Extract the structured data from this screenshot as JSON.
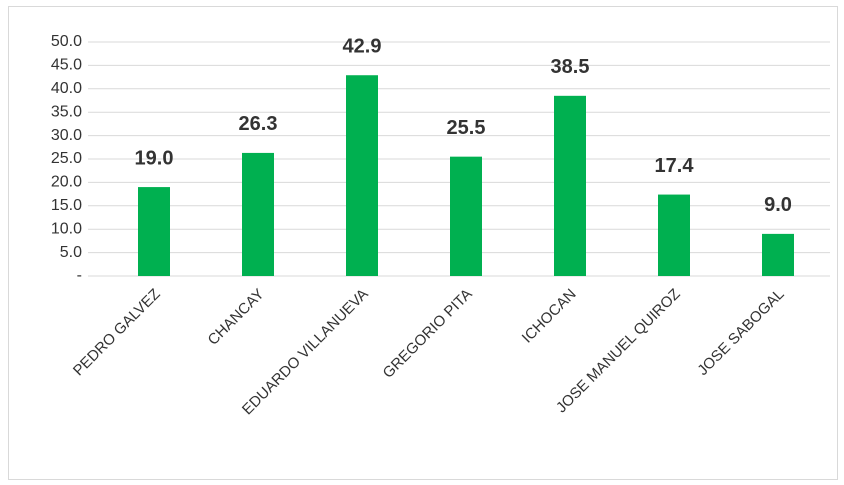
{
  "chart_data": {
    "type": "bar",
    "categories": [
      "PEDRO GALVEZ",
      "CHANCAY",
      "EDUARDO VILLANUEVA",
      "GREGORIO PITA",
      "ICHOCAN",
      "JOSE MANUEL QUIROZ",
      "JOSE SABOGAL"
    ],
    "values": [
      19.0,
      26.3,
      42.9,
      25.5,
      38.5,
      17.4,
      9.0
    ],
    "value_labels": [
      "19.0",
      "26.3",
      "42.9",
      "25.5",
      "38.5",
      "17.4",
      "9.0"
    ],
    "color": "#00b050",
    "ylim": [
      0,
      50
    ],
    "yticks": [
      {
        "value": 0,
        "label": "-"
      },
      {
        "value": 5,
        "label": "5.0"
      },
      {
        "value": 10,
        "label": "10.0"
      },
      {
        "value": 15,
        "label": "15.0"
      },
      {
        "value": 20,
        "label": "20.0"
      },
      {
        "value": 25,
        "label": "25.0"
      },
      {
        "value": 30,
        "label": "30.0"
      },
      {
        "value": 35,
        "label": "35.0"
      },
      {
        "value": 40,
        "label": "40.0"
      },
      {
        "value": 45,
        "label": "45.0"
      },
      {
        "value": 50,
        "label": "50.0"
      }
    ],
    "grid": true
  }
}
